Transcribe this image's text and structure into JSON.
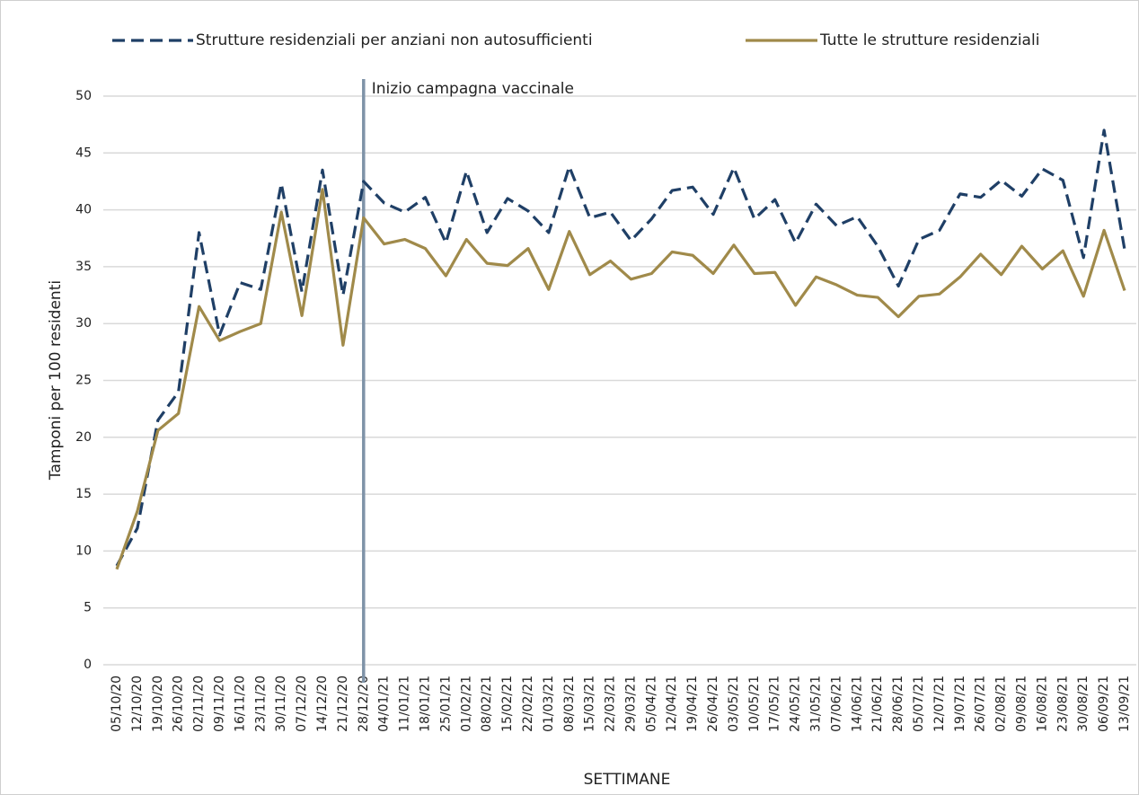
{
  "chart_data": {
    "type": "line",
    "categories": [
      "05/10/20",
      "12/10/20",
      "19/10/20",
      "26/10/20",
      "02/11/20",
      "09/11/20",
      "16/11/20",
      "23/11/20",
      "30/11/20",
      "07/12/20",
      "14/12/20",
      "21/12/20",
      "28/12/20",
      "04/01/21",
      "11/01/21",
      "18/01/21",
      "25/01/21",
      "01/02/21",
      "08/02/21",
      "15/02/21",
      "22/02/21",
      "01/03/21",
      "08/03/21",
      "15/03/21",
      "22/03/21",
      "29/03/21",
      "05/04/21",
      "12/04/21",
      "19/04/21",
      "26/04/21",
      "03/05/21",
      "10/05/21",
      "17/05/21",
      "24/05/21",
      "31/05/21",
      "07/06/21",
      "14/06/21",
      "21/06/21",
      "28/06/21",
      "05/07/21",
      "12/07/21",
      "19/07/21",
      "26/07/21",
      "02/08/21",
      "09/08/21",
      "16/08/21",
      "23/08/21",
      "30/08/21",
      "06/09/21",
      "13/09/21"
    ],
    "series": [
      {
        "name": "Strutture residenziali per anziani non autosufficienti",
        "color": "#1f3f66",
        "dashed": true,
        "values": [
          8.7,
          12,
          21.5,
          24,
          38,
          29,
          33.6,
          33,
          42.3,
          32.8,
          43.5,
          32.5,
          42.5,
          40.6,
          39.8,
          41.1,
          37.1,
          43.4,
          38,
          41,
          39.9,
          38,
          43.8,
          39.3,
          39.8,
          37.3,
          39.2,
          41.7,
          42,
          39.6,
          43.7,
          39.2,
          40.9,
          37.1,
          40.5,
          38.6,
          39.4,
          36.8,
          33.3,
          37.4,
          38.2,
          41.4,
          41.1,
          42.6,
          41.2,
          43.6,
          42.6,
          35.8,
          47,
          36.5
        ]
      },
      {
        "name": "Tutte le strutture residenziali",
        "color": "#a08a4a",
        "dashed": false,
        "values": [
          8.4,
          13.5,
          20.6,
          22.1,
          31.5,
          28.5,
          29.3,
          30,
          39.8,
          30.7,
          41.8,
          28.1,
          39.3,
          37,
          37.4,
          36.6,
          34.2,
          37.4,
          35.3,
          35.1,
          36.6,
          33,
          38.1,
          34.3,
          35.5,
          33.9,
          34.4,
          36.3,
          36,
          34.4,
          36.9,
          34.4,
          34.5,
          31.6,
          34.1,
          33.4,
          32.5,
          32.3,
          30.6,
          32.4,
          32.6,
          34.1,
          36.1,
          34.3,
          36.8,
          34.8,
          36.4,
          32.4,
          38.2,
          32.9
        ]
      }
    ],
    "ylim": [
      0,
      50
    ],
    "yticks": [
      0,
      5,
      10,
      15,
      20,
      25,
      30,
      35,
      40,
      45,
      50
    ],
    "grid": true,
    "xlabel": "SETTIMANE",
    "ylabel": "Tamponi per 100 residenti",
    "annotation": {
      "text": "Inizio campagna vaccinale",
      "x": "28/12/20",
      "color": "#7f93a8"
    }
  }
}
